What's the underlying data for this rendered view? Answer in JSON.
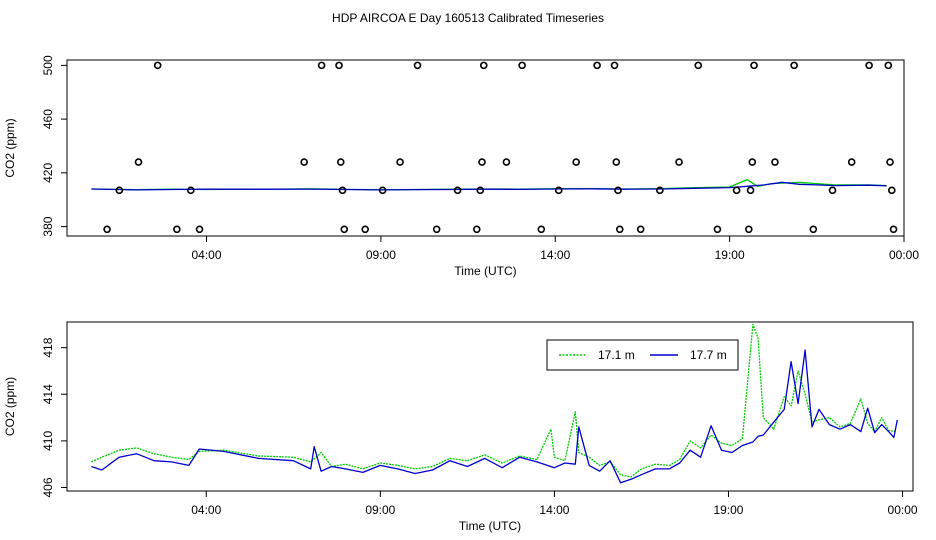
{
  "title": "HDP AIRCOA E  Day 160513  Calibrated Timeseries",
  "chart_data": [
    {
      "type": "scatter+line",
      "xlabel": "Time (UTC)",
      "ylabel": "CO2 (ppm)",
      "xlim": [
        0,
        24
      ],
      "ylim": [
        373,
        504
      ],
      "xticks": [
        {
          "v": 4,
          "label": "04:00"
        },
        {
          "v": 9,
          "label": "09:00"
        },
        {
          "v": 14,
          "label": "14:00"
        },
        {
          "v": 19,
          "label": "19:00"
        },
        {
          "v": 24,
          "label": "00:00"
        }
      ],
      "yticks": [
        {
          "v": 380,
          "label": "380"
        },
        {
          "v": 420,
          "label": "420"
        },
        {
          "v": 460,
          "label": "460"
        },
        {
          "v": 500,
          "label": "500"
        }
      ],
      "cal_points": [
        [
          1.15,
          378
        ],
        [
          1.5,
          407
        ],
        [
          2.05,
          428
        ],
        [
          2.6,
          500
        ],
        [
          3.15,
          378
        ],
        [
          3.55,
          407
        ],
        [
          3.8,
          378
        ],
        [
          6.8,
          428
        ],
        [
          7.3,
          500
        ],
        [
          7.8,
          500
        ],
        [
          7.85,
          428
        ],
        [
          7.9,
          407
        ],
        [
          7.95,
          378
        ],
        [
          8.55,
          378
        ],
        [
          9.05,
          407
        ],
        [
          9.55,
          428
        ],
        [
          10.05,
          500
        ],
        [
          10.6,
          378
        ],
        [
          11.2,
          407
        ],
        [
          11.75,
          378
        ],
        [
          11.85,
          407
        ],
        [
          11.9,
          428
        ],
        [
          11.95,
          500
        ],
        [
          12.6,
          428
        ],
        [
          13.05,
          500
        ],
        [
          13.6,
          378
        ],
        [
          14.1,
          407
        ],
        [
          14.6,
          428
        ],
        [
          15.2,
          500
        ],
        [
          15.7,
          500
        ],
        [
          15.75,
          428
        ],
        [
          15.8,
          407
        ],
        [
          15.85,
          378
        ],
        [
          16.45,
          378
        ],
        [
          17.0,
          407
        ],
        [
          17.55,
          428
        ],
        [
          18.1,
          500
        ],
        [
          18.65,
          378
        ],
        [
          19.2,
          407
        ],
        [
          19.55,
          378
        ],
        [
          19.6,
          407
        ],
        [
          19.65,
          428
        ],
        [
          19.7,
          500
        ],
        [
          20.3,
          428
        ],
        [
          20.85,
          500
        ],
        [
          21.4,
          378
        ],
        [
          21.95,
          407
        ],
        [
          22.5,
          428
        ],
        [
          23.0,
          500
        ],
        [
          23.55,
          500
        ],
        [
          23.6,
          428
        ],
        [
          23.65,
          407
        ],
        [
          23.7,
          378
        ]
      ],
      "series": [
        {
          "name": "17.1 m",
          "color": "#00cc00",
          "x": [
            0.7,
            2,
            3,
            4,
            6,
            7,
            8,
            9,
            10,
            11,
            12,
            13,
            14,
            15,
            16,
            17,
            18,
            19,
            19.5,
            19.8,
            20.2,
            21,
            21.5,
            22,
            23,
            23.5
          ],
          "values": [
            408,
            407.5,
            407.8,
            407.6,
            407.9,
            408.1,
            407.7,
            407.4,
            407.6,
            407.8,
            408,
            407.9,
            408.2,
            408.3,
            408,
            408.2,
            409,
            409.5,
            415,
            410,
            412,
            413,
            412,
            411,
            411,
            410.5
          ]
        },
        {
          "name": "17.7 m",
          "color": "#0000cc",
          "x": [
            0.7,
            2,
            3,
            4,
            6,
            7,
            8,
            9,
            10,
            11,
            12,
            13,
            14,
            15,
            16,
            17,
            18,
            19,
            19.5,
            20,
            20.5,
            21,
            21.5,
            22,
            23,
            23.5
          ],
          "values": [
            408,
            407.3,
            407.6,
            407.8,
            407.8,
            407.9,
            407.6,
            407.3,
            407.5,
            407.6,
            407.8,
            407.7,
            408,
            408.1,
            407.8,
            408,
            408.5,
            409,
            410,
            411,
            413,
            411.5,
            411,
            410.5,
            410.8,
            410.4
          ]
        }
      ]
    },
    {
      "type": "line",
      "xlabel": "Time (UTC)",
      "ylabel": "CO2 (ppm)",
      "xlim": [
        0,
        24.3
      ],
      "ylim": [
        405.7,
        420.2
      ],
      "xticks": [
        {
          "v": 4,
          "label": "04:00"
        },
        {
          "v": 9,
          "label": "09:00"
        },
        {
          "v": 14,
          "label": "14:00"
        },
        {
          "v": 19,
          "label": "19:00"
        },
        {
          "v": 24,
          "label": "00:00"
        }
      ],
      "yticks": [
        {
          "v": 406,
          "label": "406"
        },
        {
          "v": 410,
          "label": "410"
        },
        {
          "v": 414,
          "label": "414"
        },
        {
          "v": 418,
          "label": "418"
        }
      ],
      "legend": "top-right",
      "series": [
        {
          "name": "17.1 m",
          "color": "#00cc00",
          "x": [
            0.7,
            1.0,
            1.5,
            2.0,
            2.5,
            3.0,
            3.5,
            3.8,
            4.5,
            5.5,
            6.5,
            7.0,
            7.3,
            7.6,
            8.0,
            8.5,
            9.0,
            9.5,
            10.0,
            10.5,
            11.0,
            11.5,
            12.0,
            12.5,
            13.0,
            13.5,
            13.9,
            14.0,
            14.3,
            14.6,
            14.7,
            15.0,
            15.3,
            15.6,
            15.9,
            16.2,
            16.5,
            16.9,
            17.3,
            17.6,
            17.9,
            18.2,
            18.5,
            18.8,
            19.1,
            19.4,
            19.7,
            19.85,
            20.0,
            20.3,
            20.6,
            20.8,
            21.0,
            21.2,
            21.4,
            21.6,
            21.9,
            22.2,
            22.5,
            22.8,
            23.0,
            23.2,
            23.4,
            23.6,
            23.8
          ],
          "values": [
            408.2,
            408.6,
            409.2,
            409.4,
            408.9,
            408.6,
            408.4,
            409.1,
            409.2,
            408.7,
            408.6,
            408.2,
            409.0,
            407.8,
            408.0,
            407.6,
            408.1,
            407.9,
            407.6,
            407.8,
            408.5,
            408.3,
            408.8,
            408.1,
            408.7,
            408.4,
            411.0,
            408.6,
            408.3,
            412.5,
            409.0,
            408.6,
            407.9,
            408.2,
            407.1,
            406.9,
            407.6,
            408.0,
            407.9,
            408.4,
            410.0,
            409.4,
            410.5,
            409.8,
            409.6,
            410.2,
            420.0,
            418.8,
            412.0,
            411.0,
            413.8,
            413.0,
            416.0,
            414.0,
            411.6,
            411.8,
            412.0,
            411.2,
            411.5,
            413.6,
            411.5,
            410.8,
            412.0,
            410.9,
            410.8
          ]
        },
        {
          "name": "17.7 m",
          "color": "#0000cc",
          "x": [
            0.7,
            1.0,
            1.5,
            2.0,
            2.5,
            3.0,
            3.5,
            3.8,
            4.5,
            5.5,
            6.5,
            7.0,
            7.1,
            7.3,
            7.6,
            8.0,
            8.5,
            9.0,
            9.5,
            10.0,
            10.5,
            11.0,
            11.5,
            12.0,
            12.5,
            13.0,
            13.5,
            14.0,
            14.3,
            14.6,
            14.7,
            15.0,
            15.3,
            15.6,
            15.9,
            16.2,
            16.5,
            16.9,
            17.3,
            17.6,
            17.9,
            18.2,
            18.5,
            18.8,
            19.1,
            19.4,
            19.7,
            19.85,
            20.0,
            20.3,
            20.6,
            20.8,
            21.0,
            21.2,
            21.4,
            21.6,
            21.9,
            22.2,
            22.5,
            22.8,
            23.0,
            23.2,
            23.4,
            23.6,
            23.75,
            23.85
          ],
          "values": [
            407.8,
            407.5,
            408.6,
            408.9,
            408.3,
            408.2,
            407.9,
            409.3,
            409.1,
            408.5,
            408.3,
            407.6,
            409.5,
            407.4,
            407.8,
            407.6,
            407.3,
            407.9,
            407.6,
            407.2,
            407.5,
            408.3,
            407.8,
            408.5,
            407.7,
            408.6,
            408.2,
            407.7,
            408.1,
            408.0,
            411.2,
            407.9,
            407.4,
            408.3,
            406.4,
            406.7,
            407.1,
            407.6,
            407.6,
            408.1,
            409.2,
            408.6,
            411.3,
            409.2,
            409.0,
            409.6,
            409.9,
            410.4,
            410.5,
            411.6,
            412.7,
            416.8,
            413.2,
            417.8,
            411.2,
            412.7,
            411.4,
            411.0,
            411.4,
            410.8,
            412.8,
            410.7,
            411.4,
            410.8,
            410.3,
            411.8
          ]
        }
      ]
    }
  ]
}
